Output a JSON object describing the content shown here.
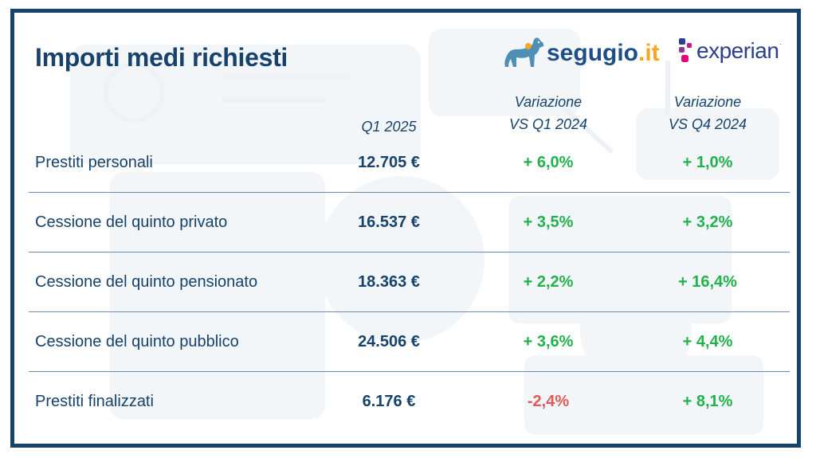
{
  "title": "Importi medi richiesti",
  "logos": {
    "segugio": {
      "main": "segugio",
      "suffix": ".it",
      "icon": "dog-icon"
    },
    "experian": {
      "text": "experian",
      "mark": ".",
      "icon": "experian-dots-icon"
    }
  },
  "colors": {
    "primary": "#16426b",
    "positive": "#22b24c",
    "negative": "#e05a5a",
    "frame": "#16426b"
  },
  "chart_data": {
    "type": "table",
    "title": "Importi medi richiesti",
    "columns": [
      {
        "line1": "",
        "line2": "Q1 2025"
      },
      {
        "line1": "Variazione",
        "line2": "VS Q1 2024"
      },
      {
        "line1": "Variazione",
        "line2": "VS Q4 2024"
      }
    ],
    "rows": [
      {
        "label": "Prestiti personali",
        "q1_2025": "12.705 €",
        "var_q1_2024": "+ 6,0%",
        "var_q4_2024": "+ 1,0%"
      },
      {
        "label": "Cessione del quinto privato",
        "q1_2025": "16.537 €",
        "var_q1_2024": "+ 3,5%",
        "var_q4_2024": "+ 3,2%"
      },
      {
        "label": "Cessione del quinto pensionato",
        "q1_2025": "18.363 €",
        "var_q1_2024": "+ 2,2%",
        "var_q4_2024": "+ 16,4%"
      },
      {
        "label": "Cessione del quinto pubblico",
        "q1_2025": "24.506 €",
        "var_q1_2024": "+ 3,6%",
        "var_q4_2024": "+ 4,4%"
      },
      {
        "label": "Prestiti finalizzati",
        "q1_2025": "6.176 €",
        "var_q1_2024": "-2,4%",
        "var_q4_2024": "+ 8,1%"
      }
    ],
    "values_eur": [
      12705,
      16537,
      18363,
      24506,
      6176
    ],
    "var_q1_2024_pct": [
      6.0,
      3.5,
      2.2,
      3.6,
      -2.4
    ],
    "var_q4_2024_pct": [
      1.0,
      3.2,
      16.4,
      4.4,
      8.1
    ]
  }
}
